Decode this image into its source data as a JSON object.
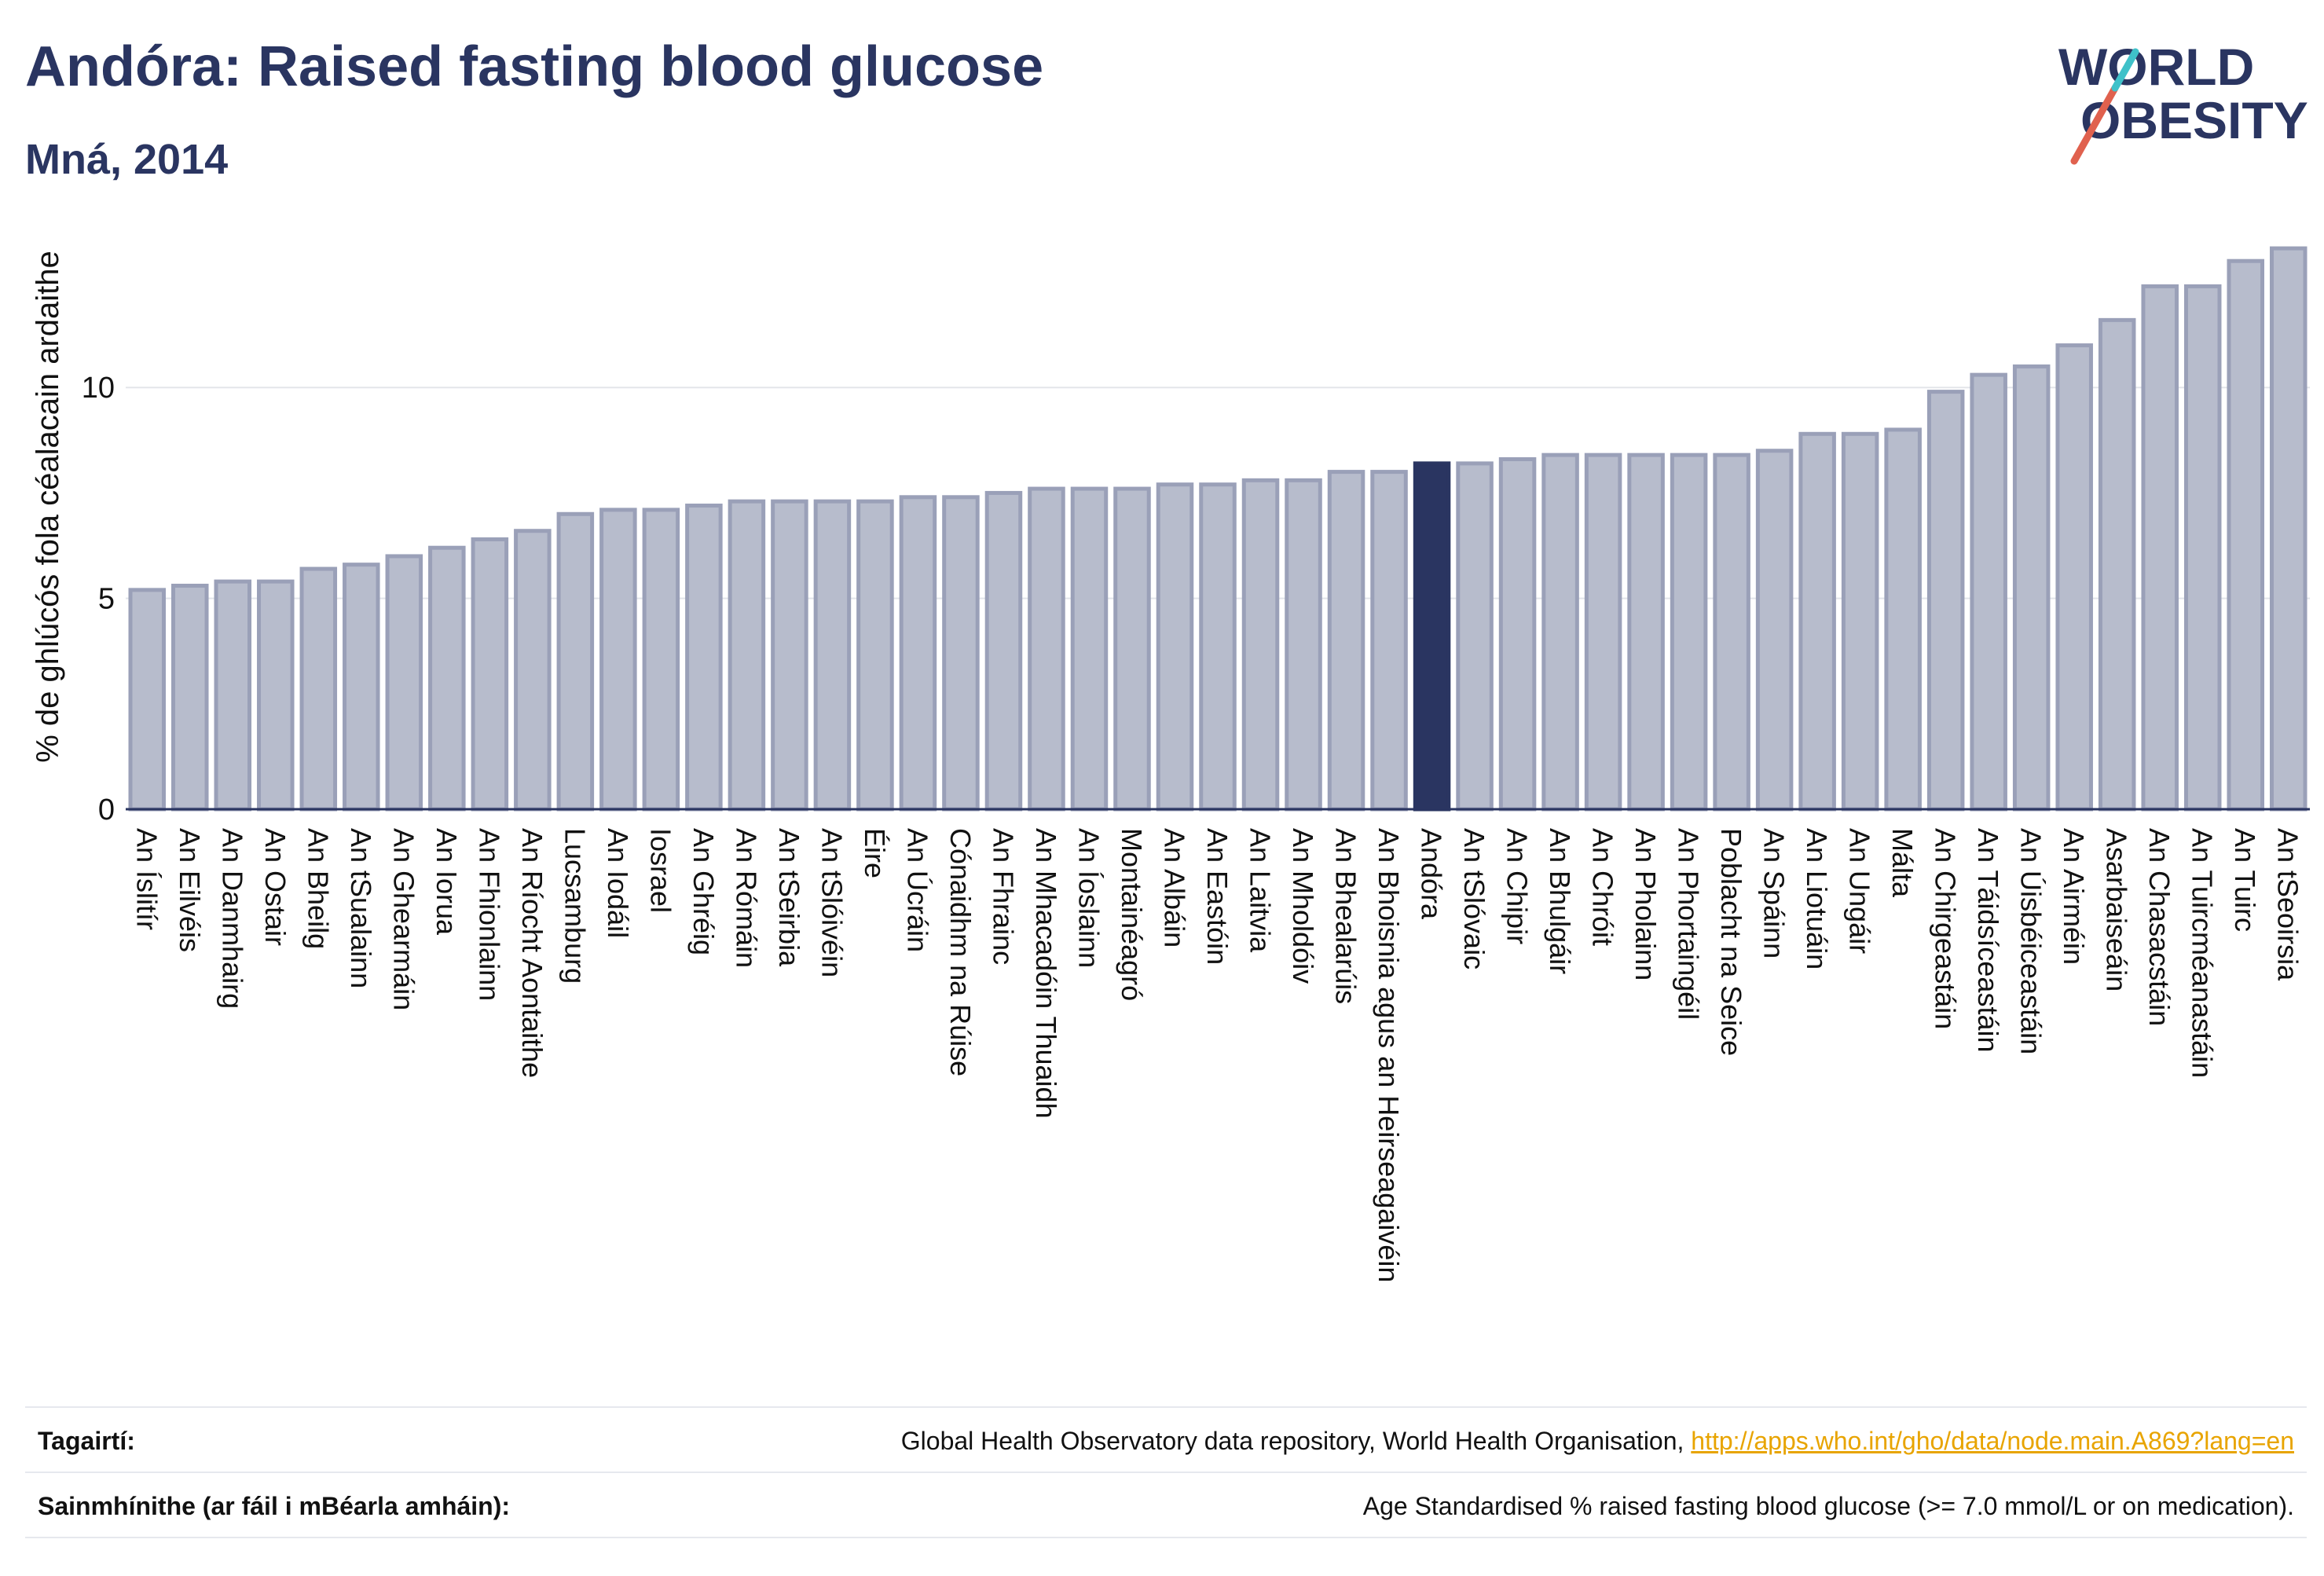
{
  "header": {
    "title": "Andóra: Raised fasting blood glucose",
    "subtitle": "Mná, 2014"
  },
  "logo": {
    "line1": "WORLD",
    "line2": "OBESITY",
    "slash_colors": [
      "#e0614e",
      "#3fc1c9"
    ]
  },
  "colors": {
    "bar": "#b7bccc",
    "bar_stroke": "#9aa0b8",
    "highlight": "#2a3561",
    "text": "#2a3561"
  },
  "chart_data": {
    "type": "bar",
    "title": "Andóra: Raised fasting blood glucose",
    "subtitle": "Mná, 2014",
    "ylabel": "% de ghlúcós fola céalacain ardaithe",
    "xlabel": "",
    "ylim": [
      0,
      13.6
    ],
    "yticks": [
      0,
      5,
      10
    ],
    "grid": true,
    "highlight": "Andóra",
    "categories": [
      "An Íslitír",
      "An Eilvéis",
      "An Danmhairg",
      "An Ostair",
      "An Bheilg",
      "An tSualainn",
      "An Ghearmáin",
      "An Iorua",
      "An Fhionlainn",
      "An Ríocht Aontaithe",
      "Lucsamburg",
      "An Iodáil",
      "Iosrael",
      "An Ghréig",
      "An Rómáin",
      "An tSeirbia",
      "An tSlóivéin",
      "Éire",
      "An Úcráin",
      "Cónaidhm na Rúise",
      "An Fhrainc",
      "An Mhacadóin Thuaidh",
      "An Íoslainn",
      "Montainéagró",
      "An Albáin",
      "An Eastóin",
      "An Laitvia",
      "An Mholdóiv",
      "An Bhealarúis",
      "An Bhoisnia agus an Heirseagaivéin",
      "Andóra",
      "An tSlóvaic",
      "An Chipir",
      "An Bhulgáir",
      "An Chróit",
      "An Pholainn",
      "An Phortaingéil",
      "Poblacht na Seice",
      "An Spáinn",
      "An Liotuáin",
      "An Ungáir",
      "Málta",
      "An Chirgeastáin",
      "An Táidsíceastáin",
      "An Úisbéiceastáin",
      "An Airméin",
      "Asarbaiseáin",
      "An Chasacstáin",
      "An Tuircméanastáin",
      "An Tuirc",
      "An tSeoirsia"
    ],
    "values": [
      5.2,
      5.3,
      5.4,
      5.4,
      5.7,
      5.8,
      6.0,
      6.2,
      6.4,
      6.6,
      7.0,
      7.1,
      7.1,
      7.2,
      7.3,
      7.3,
      7.3,
      7.3,
      7.4,
      7.4,
      7.5,
      7.6,
      7.6,
      7.6,
      7.7,
      7.7,
      7.8,
      7.8,
      8.0,
      8.0,
      8.2,
      8.2,
      8.3,
      8.4,
      8.4,
      8.4,
      8.4,
      8.4,
      8.5,
      8.9,
      8.9,
      9.0,
      9.9,
      10.3,
      10.5,
      11.0,
      11.6,
      12.4,
      12.4,
      13.0,
      13.3
    ]
  },
  "footer": {
    "references_label": "Tagairtí:",
    "references_text": "Global Health Observatory data repository, World Health Organisation, ",
    "references_link": "http://apps.who.int/gho/data/node.main.A869?lang=en",
    "definitions_label": "Sainmhínithe (ar fáil i mBéarla amháin):",
    "definitions_text": "Age Standardised % raised fasting blood glucose (>= 7.0 mmol/L or on medication)."
  }
}
